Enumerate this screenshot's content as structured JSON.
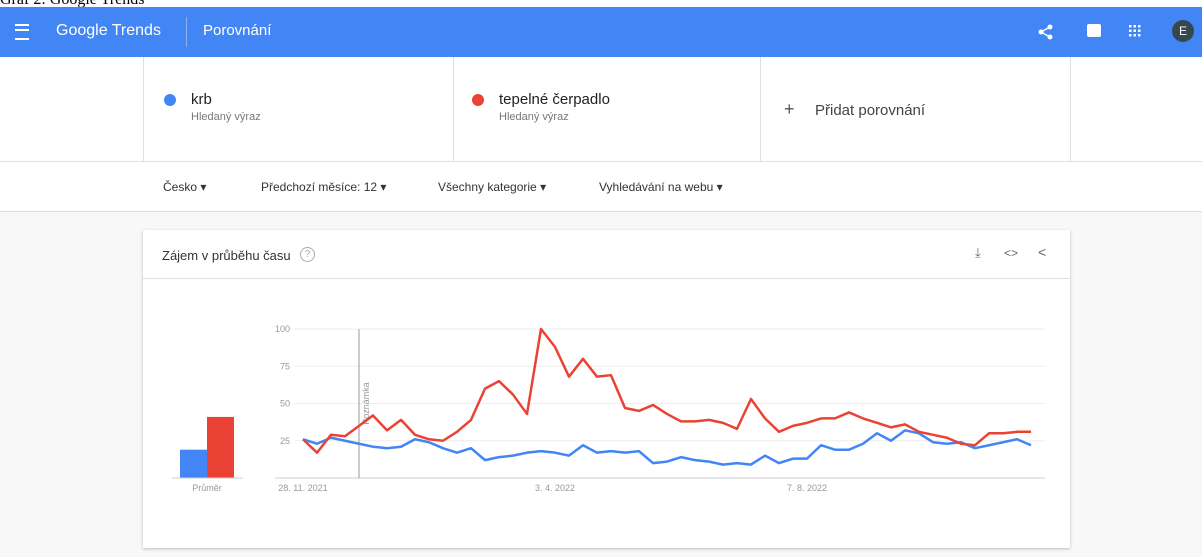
{
  "caption": "Graf 2: Google Trends",
  "header": {
    "logo": "Google Trends",
    "page": "Porovnání",
    "avatar": "E"
  },
  "terms": {
    "subtitle": [
      "Hledaný výraz",
      "Hledaný výraz"
    ],
    "add": "Přidat porovnání"
  },
  "filters": [
    "Česko",
    "Předchozí měsíce: 12",
    "Všechny kategorie",
    "Vyhledávání na webu"
  ],
  "chart_data": {
    "type": "line",
    "title": "Zájem v průběhu času",
    "categories": [
      "28. 11. 2021",
      null,
      null,
      null,
      null,
      null,
      null,
      null,
      null,
      null,
      null,
      null,
      null,
      null,
      null,
      null,
      null,
      null,
      "3. 4. 2022",
      null,
      null,
      null,
      null,
      null,
      null,
      null,
      null,
      null,
      null,
      null,
      null,
      null,
      null,
      null,
      null,
      null,
      "7. 8. 2022",
      null,
      null,
      null,
      null,
      null,
      null,
      null,
      null,
      null,
      null,
      null,
      null,
      null,
      null,
      null,
      null
    ],
    "series": [
      {
        "name": "krb",
        "color": "#4285f4",
        "average": 19,
        "values": [
          26,
          23,
          27,
          25,
          23,
          21,
          20,
          21,
          26,
          24,
          20,
          17,
          20,
          12,
          14,
          15,
          17,
          18,
          17,
          15,
          22,
          17,
          18,
          17,
          18,
          10,
          11,
          14,
          12,
          11,
          9,
          10,
          9,
          15,
          10,
          13,
          13,
          22,
          19,
          19,
          23,
          30,
          25,
          32,
          30,
          24,
          23,
          24,
          20,
          22,
          24,
          26,
          22
        ]
      },
      {
        "name": "tepelné čerpadlo",
        "color": "#ea4335",
        "average": 41,
        "values": [
          26,
          17,
          29,
          28,
          35,
          42,
          32,
          39,
          29,
          26,
          25,
          31,
          39,
          60,
          65,
          56,
          43,
          100,
          88,
          68,
          80,
          68,
          69,
          47,
          45,
          49,
          43,
          38,
          38,
          39,
          37,
          33,
          53,
          40,
          31,
          35,
          37,
          40,
          40,
          44,
          40,
          37,
          34,
          36,
          31,
          29,
          27,
          23,
          22,
          30,
          30,
          31,
          31
        ]
      }
    ],
    "average_label": "Průměr",
    "annotation": {
      "index": 4,
      "label": "Poznámka"
    },
    "ylim": [
      0,
      100
    ],
    "yticks": [
      25,
      50,
      75,
      100
    ],
    "grid": true
  }
}
